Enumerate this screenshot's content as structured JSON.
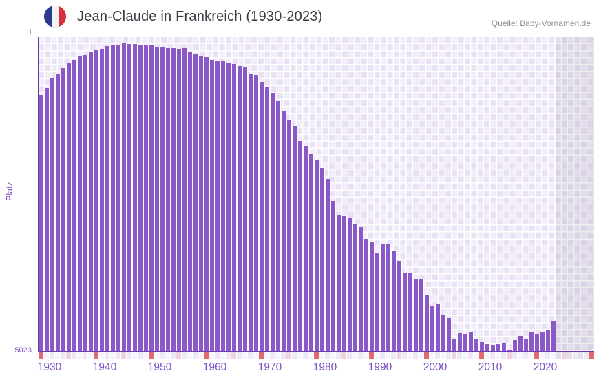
{
  "header": {
    "title": "Jean-Claude in Frankreich (1930-2023)",
    "source": "Quelle: Baby-Vornamen.de"
  },
  "chart_data": {
    "type": "bar",
    "title": "Jean-Claude in Frankreich (1930-2023)",
    "xlabel": "",
    "ylabel": "Platz",
    "y_axis": {
      "top_label": "1",
      "bottom_label": "5023",
      "min": 1,
      "max": 5023,
      "inverted": true
    },
    "x_axis": {
      "first_year": 1930,
      "last_year": 2023,
      "strip_last_year": 2030,
      "decade_tick_years": [
        1930,
        1940,
        1950,
        1960,
        1970,
        1980,
        1990,
        2000,
        2010,
        2020
      ],
      "half_decade_tick_years": [
        1935,
        1945,
        1955,
        1965,
        1975,
        1985,
        1995,
        2005,
        2015,
        2025
      ]
    },
    "legend": "none",
    "grid": "checkerboard",
    "categories": [
      1930,
      1931,
      1932,
      1933,
      1934,
      1935,
      1936,
      1937,
      1938,
      1939,
      1940,
      1941,
      1942,
      1943,
      1944,
      1945,
      1946,
      1947,
      1948,
      1949,
      1950,
      1951,
      1952,
      1953,
      1954,
      1955,
      1956,
      1957,
      1958,
      1959,
      1960,
      1961,
      1962,
      1963,
      1964,
      1965,
      1966,
      1967,
      1968,
      1969,
      1970,
      1971,
      1972,
      1973,
      1974,
      1975,
      1976,
      1977,
      1978,
      1979,
      1980,
      1981,
      1982,
      1983,
      1984,
      1985,
      1986,
      1987,
      1988,
      1989,
      1990,
      1991,
      1992,
      1993,
      1994,
      1995,
      1996,
      1997,
      1998,
      1999,
      2000,
      2001,
      2002,
      2003,
      2004,
      2005,
      2006,
      2007,
      2008,
      2009,
      2010,
      2011,
      2012,
      2013,
      2014,
      2015,
      2016,
      2017,
      2018,
      2019,
      2020,
      2021,
      2022,
      2023
    ],
    "values": [
      930,
      819,
      665,
      581,
      500,
      423,
      361,
      313,
      287,
      232,
      207,
      185,
      148,
      133,
      122,
      97,
      111,
      111,
      119,
      133,
      122,
      166,
      166,
      174,
      174,
      191,
      177,
      232,
      269,
      298,
      324,
      361,
      379,
      390,
      405,
      427,
      463,
      471,
      599,
      610,
      720,
      801,
      893,
      1014,
      1179,
      1334,
      1418,
      1664,
      1738,
      1873,
      1976,
      2097,
      2270,
      2622,
      2839,
      2864,
      2887,
      2997,
      3041,
      3231,
      3272,
      3448,
      3305,
      3313,
      3423,
      3583,
      3775,
      3775,
      3877,
      3877,
      4134,
      4296,
      4270,
      4442,
      4491,
      4824,
      4736,
      4751,
      4722,
      4832,
      4883,
      4901,
      4923,
      4912,
      4894,
      4998,
      4850,
      4777,
      4821,
      4729,
      4748,
      4722,
      4685,
      4538
    ],
    "colors": {
      "bar": "#8a58c7",
      "axis_spine": "#6a3ab0",
      "tick_label": "#7b4fc7",
      "title_text": "#3b3b45",
      "source_text": "#90909b",
      "plot_cell_light": "#f1edf9",
      "plot_cell_dark": "#e9e2f4",
      "strip_decade": "#e06a6e",
      "strip_half_decade": "#eed3df",
      "strip_even": "#ece8f5",
      "strip_odd": "#f8f6fc",
      "strip_future_even": "#e3e0eb",
      "strip_future_odd": "#edeaf3",
      "flag_blue": "#2a3a8c",
      "flag_red": "#dc2f3f"
    }
  }
}
